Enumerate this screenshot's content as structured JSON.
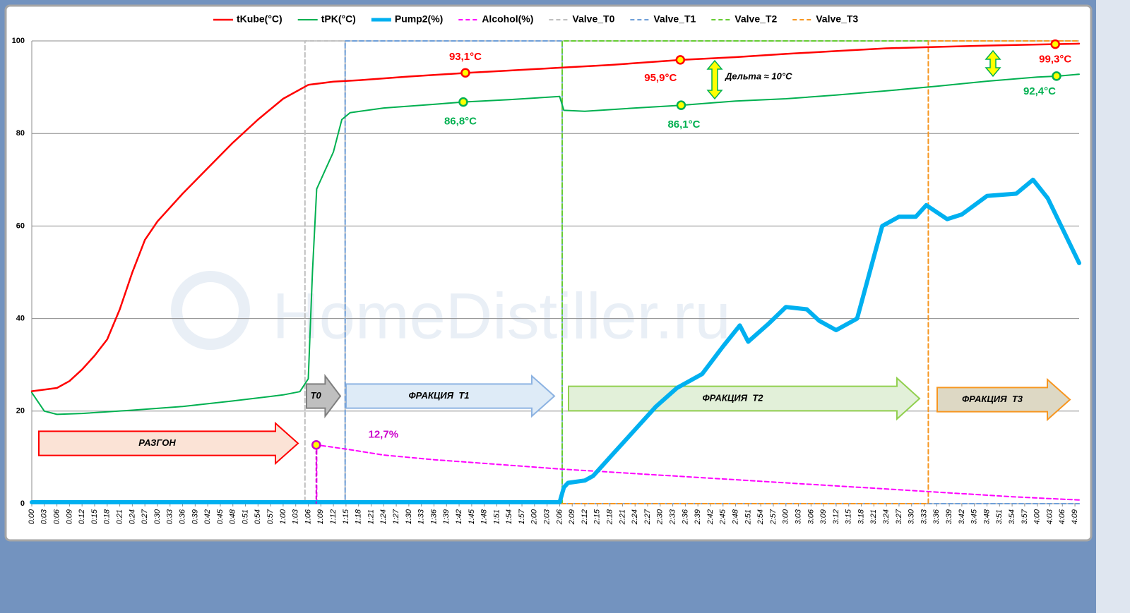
{
  "chart_data": {
    "type": "line",
    "watermark": "HomeDistiller.ru",
    "xlim": [
      0,
      250
    ],
    "ylim": [
      0,
      100
    ],
    "yticks": [
      0,
      20,
      40,
      60,
      80,
      100
    ],
    "grid": true,
    "xticks": [
      {
        "value": 0,
        "label": "0:00"
      },
      {
        "value": 3,
        "label": "0:03"
      },
      {
        "value": 6,
        "label": "0:06"
      },
      {
        "value": 9,
        "label": "0:09"
      },
      {
        "value": 12,
        "label": "0:12"
      },
      {
        "value": 15,
        "label": "0:15"
      },
      {
        "value": 18,
        "label": "0:18"
      },
      {
        "value": 21,
        "label": "0:21"
      },
      {
        "value": 24,
        "label": "0:24"
      },
      {
        "value": 27,
        "label": "0:27"
      },
      {
        "value": 30,
        "label": "0:30"
      },
      {
        "value": 33,
        "label": "0:33"
      },
      {
        "value": 36,
        "label": "0:36"
      },
      {
        "value": 39,
        "label": "0:39"
      },
      {
        "value": 42,
        "label": "0:42"
      },
      {
        "value": 45,
        "label": "0:45"
      },
      {
        "value": 48,
        "label": "0:48"
      },
      {
        "value": 51,
        "label": "0:51"
      },
      {
        "value": 54,
        "label": "0:54"
      },
      {
        "value": 57,
        "label": "0:57"
      },
      {
        "value": 60,
        "label": "1:00"
      },
      {
        "value": 63,
        "label": "1:03"
      },
      {
        "value": 66,
        "label": "1:06"
      },
      {
        "value": 69,
        "label": "1:09"
      },
      {
        "value": 72,
        "label": "1:12"
      },
      {
        "value": 75,
        "label": "1:15"
      },
      {
        "value": 78,
        "label": "1:18"
      },
      {
        "value": 81,
        "label": "1:21"
      },
      {
        "value": 84,
        "label": "1:24"
      },
      {
        "value": 87,
        "label": "1:27"
      },
      {
        "value": 90,
        "label": "1:30"
      },
      {
        "value": 93,
        "label": "1:33"
      },
      {
        "value": 96,
        "label": "1:36"
      },
      {
        "value": 99,
        "label": "1:39"
      },
      {
        "value": 102,
        "label": "1:42"
      },
      {
        "value": 105,
        "label": "1:45"
      },
      {
        "value": 108,
        "label": "1:48"
      },
      {
        "value": 111,
        "label": "1:51"
      },
      {
        "value": 114,
        "label": "1:54"
      },
      {
        "value": 117,
        "label": "1:57"
      },
      {
        "value": 120,
        "label": "2:00"
      },
      {
        "value": 123,
        "label": "2:03"
      },
      {
        "value": 126,
        "label": "2:06"
      },
      {
        "value": 129,
        "label": "2:09"
      },
      {
        "value": 132,
        "label": "2:12"
      },
      {
        "value": 135,
        "label": "2:15"
      },
      {
        "value": 138,
        "label": "2:18"
      },
      {
        "value": 141,
        "label": "2:21"
      },
      {
        "value": 144,
        "label": "2:24"
      },
      {
        "value": 147,
        "label": "2:27"
      },
      {
        "value": 150,
        "label": "2:30"
      },
      {
        "value": 153,
        "label": "2:33"
      },
      {
        "value": 156,
        "label": "2:36"
      },
      {
        "value": 159,
        "label": "2:39"
      },
      {
        "value": 162,
        "label": "2:42"
      },
      {
        "value": 165,
        "label": "2:45"
      },
      {
        "value": 168,
        "label": "2:48"
      },
      {
        "value": 171,
        "label": "2:51"
      },
      {
        "value": 174,
        "label": "2:54"
      },
      {
        "value": 177,
        "label": "2:57"
      },
      {
        "value": 180,
        "label": "3:00"
      },
      {
        "value": 183,
        "label": "3:03"
      },
      {
        "value": 186,
        "label": "3:06"
      },
      {
        "value": 189,
        "label": "3:09"
      },
      {
        "value": 192,
        "label": "3:12"
      },
      {
        "value": 195,
        "label": "3:15"
      },
      {
        "value": 198,
        "label": "3:18"
      },
      {
        "value": 201,
        "label": "3:21"
      },
      {
        "value": 204,
        "label": "3:24"
      },
      {
        "value": 207,
        "label": "3:27"
      },
      {
        "value": 210,
        "label": "3:30"
      },
      {
        "value": 213,
        "label": "3:33"
      },
      {
        "value": 216,
        "label": "3:36"
      },
      {
        "value": 219,
        "label": "3:39"
      },
      {
        "value": 222,
        "label": "3:42"
      },
      {
        "value": 225,
        "label": "3:45"
      },
      {
        "value": 228,
        "label": "3:48"
      },
      {
        "value": 231,
        "label": "3:51"
      },
      {
        "value": 234,
        "label": "3:54"
      },
      {
        "value": 237,
        "label": "3:57"
      },
      {
        "value": 240,
        "label": "4:00"
      },
      {
        "value": 243,
        "label": "4:03"
      },
      {
        "value": 246,
        "label": "4:06"
      },
      {
        "value": 249,
        "label": "4:09"
      }
    ],
    "series": [
      {
        "name": "tKube(°C)",
        "color": "#ff0000",
        "width": 2.5,
        "dash": false,
        "x": [
          0,
          6,
          9,
          12,
          15,
          18,
          21,
          24,
          27,
          30,
          36,
          42,
          48,
          54,
          60,
          66,
          72,
          78,
          90,
          104,
          114,
          126,
          138,
          155,
          168,
          180,
          192,
          204,
          216,
          228,
          244,
          250
        ],
        "values": [
          24.3,
          25,
          26.5,
          29,
          32,
          35.5,
          42,
          50,
          57,
          61,
          67,
          72.5,
          78,
          83,
          87.5,
          90.5,
          91.2,
          91.5,
          92.3,
          93.1,
          93.6,
          94.2,
          94.8,
          95.9,
          96.5,
          97.2,
          97.8,
          98.4,
          98.7,
          99,
          99.3,
          99.4
        ]
      },
      {
        "name": "tPK(°C)",
        "color": "#00b050",
        "width": 2,
        "dash": false,
        "x": [
          0,
          3,
          6,
          12,
          24,
          36,
          48,
          60,
          64,
          66,
          67,
          68,
          70,
          72,
          74,
          76,
          84,
          96,
          103,
          114,
          126,
          127,
          132,
          144,
          155,
          168,
          180,
          192,
          204,
          216,
          228,
          240,
          245,
          250
        ],
        "values": [
          24,
          20,
          19.3,
          19.5,
          20.2,
          21,
          22.2,
          23.5,
          24.2,
          27,
          50,
          68,
          72,
          76,
          83,
          84.5,
          85.5,
          86.3,
          86.8,
          87.3,
          88,
          85,
          84.8,
          85.5,
          86.1,
          87,
          87.5,
          88.3,
          89.2,
          90.2,
          91.3,
          92.2,
          92.4,
          92.8
        ]
      },
      {
        "name": "Pump2(%)",
        "color": "#00b0f0",
        "width": 6,
        "dash": false,
        "x": [
          0,
          126,
          127,
          128,
          132,
          134,
          139,
          144,
          149,
          154,
          160,
          165,
          169,
          171,
          176,
          180,
          185,
          188,
          192,
          197,
          200,
          203,
          207,
          211,
          213.5,
          218.5,
          222,
          228,
          235,
          239,
          242.5,
          250
        ],
        "values": [
          0.3,
          0.3,
          3.5,
          4.5,
          5,
          6,
          11,
          16,
          21,
          25,
          28,
          34,
          38.5,
          35,
          39,
          42.5,
          42,
          39.5,
          37.5,
          40,
          50,
          60,
          62,
          62,
          64.5,
          61.5,
          62.5,
          66.5,
          67,
          70,
          66,
          52
        ]
      },
      {
        "name": "Alcohol(%)",
        "color": "#ff00ff",
        "width": 2,
        "dash": true,
        "x": [
          68,
          68,
          75,
          84,
          96,
          108,
          126,
          144,
          162,
          180,
          198,
          216,
          234,
          250
        ],
        "values": [
          0,
          12.7,
          11.8,
          10.5,
          9.5,
          8.7,
          7.5,
          6.5,
          5.5,
          4.5,
          3.5,
          2.5,
          1.5,
          0.8
        ]
      },
      {
        "name": "Valve_T0",
        "color": "#bfbfbf",
        "width": 2,
        "dash": true,
        "x": [
          0,
          65.2,
          65.2,
          74.8,
          74.8,
          250
        ],
        "values": [
          0,
          0,
          100,
          100,
          0,
          0
        ]
      },
      {
        "name": "Valve_T1",
        "color": "#6f9fd8",
        "width": 2,
        "dash": true,
        "x": [
          0,
          74.8,
          74.8,
          126.6,
          126.6,
          250
        ],
        "values": [
          0,
          0,
          100,
          100,
          0,
          0
        ]
      },
      {
        "name": "Valve_T2",
        "color": "#66cc33",
        "width": 2,
        "dash": true,
        "x": [
          0,
          126.6,
          126.6,
          214,
          250
        ],
        "values": [
          0,
          0,
          100,
          100,
          100
        ]
      },
      {
        "name": "Valve_T3",
        "color": "#f79620",
        "width": 2,
        "dash": true,
        "x": [
          0,
          214,
          214,
          250
        ],
        "values": [
          0,
          0,
          100,
          100
        ]
      }
    ],
    "annotations": [
      {
        "label": "93,1°C",
        "x": 103.5,
        "value": 93.1,
        "color": "#ff0000"
      },
      {
        "label": "95,9°C",
        "x": 154.8,
        "value": 95.9,
        "color": "#ff0000"
      },
      {
        "label": "99,3°C",
        "x": 244.3,
        "value": 99.3,
        "color": "#ff0000"
      },
      {
        "label": "86,8°C",
        "x": 103,
        "value": 86.8,
        "color": "#00b050"
      },
      {
        "label": "86,1°C",
        "x": 155,
        "value": 86.1,
        "color": "#00b050"
      },
      {
        "label": "92,4°C",
        "x": 244.6,
        "value": 92.4,
        "color": "#00b050"
      },
      {
        "label": "12,7%",
        "x": 67.9,
        "value": 12.7,
        "color": "#cc00cc"
      }
    ],
    "delta_label": "Дельта ≈ 10°C",
    "phases": [
      {
        "label": "РАЗГОН",
        "fill": "#fbe3d6",
        "stroke": "#ff0000"
      },
      {
        "label": "T0",
        "fill": "#bfbfbf",
        "stroke": "#7f7f7f"
      },
      {
        "label": "ФРАКЦИЯ  T1",
        "fill": "#deebf7",
        "stroke": "#8db3e2"
      },
      {
        "label": "ФРАКЦИЯ  T2",
        "fill": "#e2f0d9",
        "stroke": "#92d050"
      },
      {
        "label": "ФРАКЦИЯ  T3",
        "fill": "#ddd8c4",
        "stroke": "#f79620"
      }
    ]
  }
}
